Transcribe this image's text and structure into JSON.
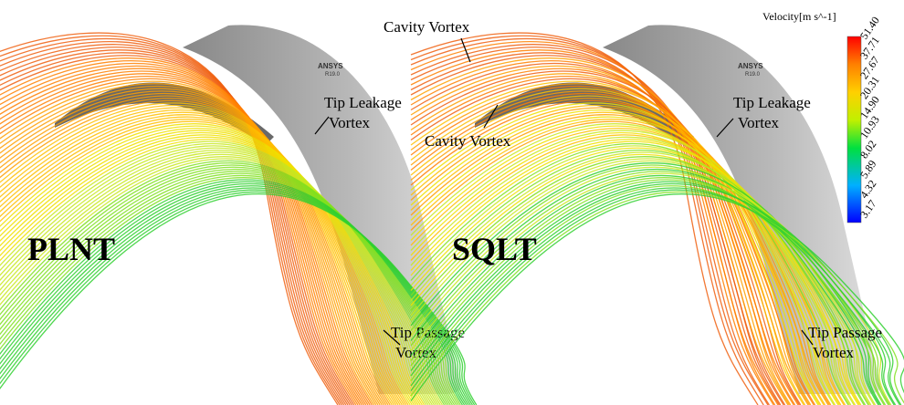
{
  "panels": [
    {
      "label": "PLNT",
      "watermark": {
        "brand": "ANSYS",
        "version": "R19.0"
      },
      "annotations": [
        {
          "lines": [
            "Tip Leakage",
            "Vortex"
          ]
        },
        {
          "lines": [
            "Tip Passage",
            "Vortex"
          ]
        }
      ]
    },
    {
      "label": "SQLT",
      "watermark": {
        "brand": "ANSYS",
        "version": "R19.0"
      },
      "annotations": [
        {
          "lines": [
            "Cavity Vortex"
          ]
        },
        {
          "lines": [
            "Cavity Vortex"
          ]
        },
        {
          "lines": [
            "Tip Leakage",
            "Vortex"
          ]
        },
        {
          "lines": [
            "Tip Passage",
            "Vortex"
          ]
        }
      ]
    }
  ],
  "colorbar": {
    "title": "Velocity[m s^-1]",
    "labels": [
      "51.40",
      "37.71",
      "27.67",
      "20.31",
      "14.90",
      "10.93",
      "8.02",
      "5.89",
      "4.32",
      "3.17"
    ]
  }
}
